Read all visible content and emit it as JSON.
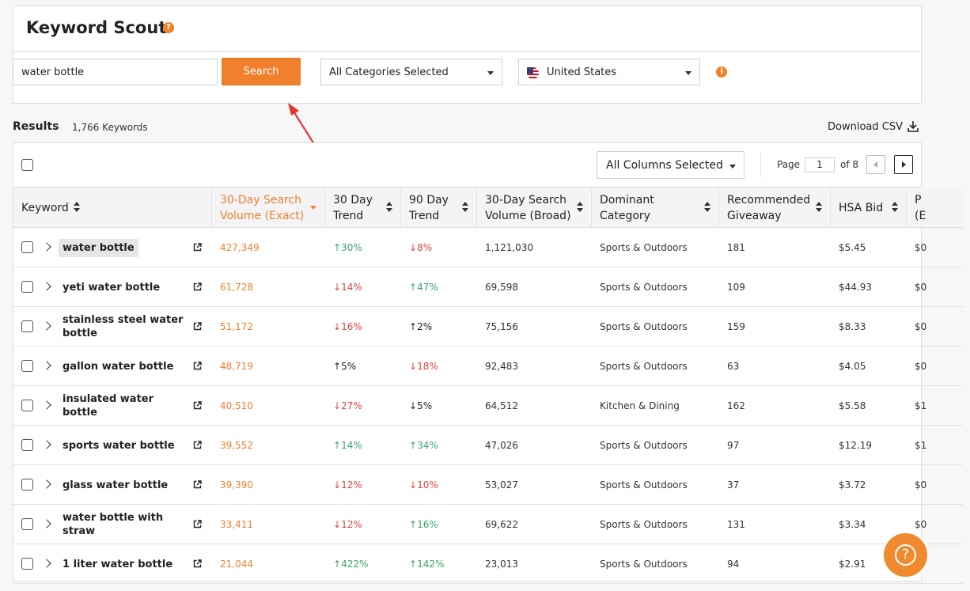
{
  "header": {
    "title": "Keyword Scout",
    "help_icon": "?"
  },
  "search": {
    "value": "water bottle",
    "button_label": "Search"
  },
  "filters": {
    "category": "All Categories Selected",
    "country": "United States",
    "info_icon": "i"
  },
  "results": {
    "label": "Results",
    "count": "1,766 Keywords",
    "download_label": "Download CSV"
  },
  "toolbar": {
    "columns_select": "All Columns Selected",
    "page_label": "Page",
    "page_value": "1",
    "page_of": "of 8"
  },
  "columns": [
    "Keyword",
    "30-Day Search\nVolume (Exact)",
    "30 Day\nTrend",
    "90 Day\nTrend",
    "30-Day Search\nVolume (Broad)",
    "Dominant\nCategory",
    "Recommended\nGiveaway",
    "HSA Bid",
    "P\n(E"
  ],
  "rows": [
    {
      "keyword": "water bottle",
      "exact": "427,349",
      "t30": "30%",
      "t30dir": "up",
      "t90": "8%",
      "t90dir": "down",
      "broad": "1,121,030",
      "category": "Sports & Outdoors",
      "giveaway": "181",
      "hsa": "$5.45",
      "partial": "$0"
    },
    {
      "keyword": "yeti water bottle",
      "exact": "61,728",
      "t30": "14%",
      "t30dir": "down",
      "t90": "47%",
      "t90dir": "up",
      "broad": "69,598",
      "category": "Sports & Outdoors",
      "giveaway": "109",
      "hsa": "$44.93",
      "partial": "$0"
    },
    {
      "keyword": "stainless steel water bottle",
      "exact": "51,172",
      "t30": "16%",
      "t30dir": "down",
      "t90": "2%",
      "t90dir": "neutral-up",
      "broad": "75,156",
      "category": "Sports & Outdoors",
      "giveaway": "159",
      "hsa": "$8.33",
      "partial": "$0"
    },
    {
      "keyword": "gallon water bottle",
      "exact": "48,719",
      "t30": "5%",
      "t30dir": "neutral-up",
      "t90": "18%",
      "t90dir": "down",
      "broad": "92,483",
      "category": "Sports & Outdoors",
      "giveaway": "63",
      "hsa": "$4.05",
      "partial": "$0"
    },
    {
      "keyword": "insulated water bottle",
      "exact": "40,510",
      "t30": "27%",
      "t30dir": "down",
      "t90": "5%",
      "t90dir": "neutral-down",
      "broad": "64,512",
      "category": "Kitchen & Dining",
      "giveaway": "162",
      "hsa": "$5.58",
      "partial": "$1"
    },
    {
      "keyword": "sports water bottle",
      "exact": "39,552",
      "t30": "14%",
      "t30dir": "up",
      "t90": "34%",
      "t90dir": "up",
      "broad": "47,026",
      "category": "Sports & Outdoors",
      "giveaway": "97",
      "hsa": "$12.19",
      "partial": "$1"
    },
    {
      "keyword": "glass water bottle",
      "exact": "39,390",
      "t30": "12%",
      "t30dir": "down",
      "t90": "10%",
      "t90dir": "down",
      "broad": "53,027",
      "category": "Sports & Outdoors",
      "giveaway": "37",
      "hsa": "$3.72",
      "partial": "$0"
    },
    {
      "keyword": "water bottle with straw",
      "exact": "33,411",
      "t30": "12%",
      "t30dir": "down",
      "t90": "16%",
      "t90dir": "up",
      "broad": "69,622",
      "category": "Sports & Outdoors",
      "giveaway": "131",
      "hsa": "$3.34",
      "partial": "$0"
    },
    {
      "keyword": "1 liter water bottle",
      "exact": "21,044",
      "t30": "422%",
      "t30dir": "up",
      "t90": "142%",
      "t90dir": "up",
      "broad": "23,013",
      "category": "Sports & Outdoors",
      "giveaway": "94",
      "hsa": "$2.91",
      "partial": "$0"
    }
  ],
  "colors": {
    "accent": "#f0802c",
    "up": "#3aa36c",
    "down": "#e1453f"
  },
  "icons": {
    "external_link": "external-link-icon",
    "expand": "chevron-right-icon",
    "download": "download-icon",
    "help_fab": "question-circle-icon"
  }
}
